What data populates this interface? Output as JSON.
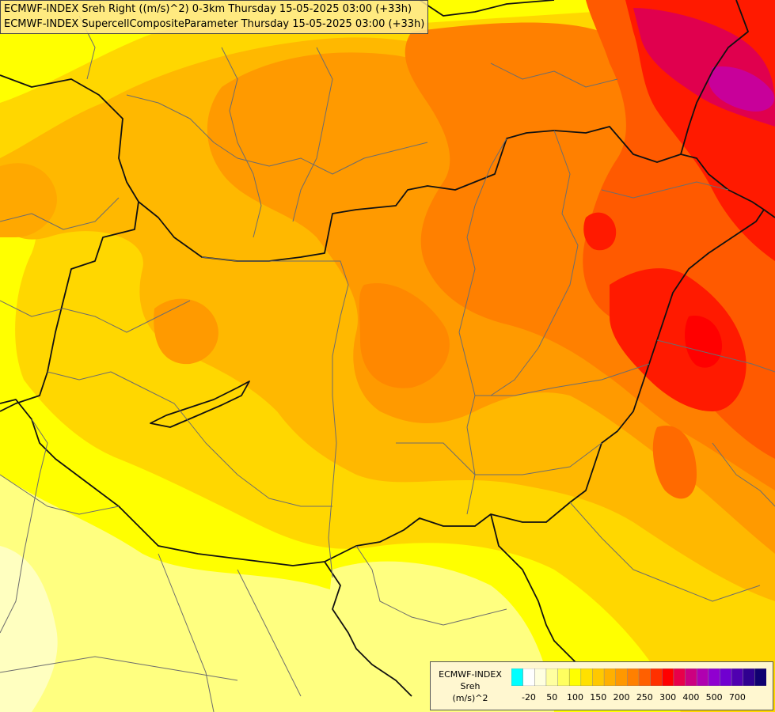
{
  "title": {
    "line1": "ECMWF-INDEX Sreh Right ((m/s)^2) 0-3km Thursday 15-05-2025 03:00 (+33h)",
    "line2": "ECMWF-INDEX SupercellCompositeParameter Thursday 15-05-2025 03:00 (+33h)"
  },
  "legend": {
    "line1": "ECMWF-INDEX",
    "line2": "Sreh",
    "line3": "(m/s)^2",
    "colors": [
      "#00ffff",
      "#ffffff",
      "#ffffe0",
      "#ffffa0",
      "#ffff60",
      "#ffff00",
      "#ffe000",
      "#ffc800",
      "#ffb000",
      "#ff9800",
      "#ff8000",
      "#ff6000",
      "#ff3000",
      "#ff0000",
      "#e8004a",
      "#cc0080",
      "#b000b0",
      "#9000d0",
      "#7000d0",
      "#5000b0",
      "#300090",
      "#100070"
    ],
    "ticks": [
      {
        "label": "-20",
        "slot": 1
      },
      {
        "label": "50",
        "slot": 3
      },
      {
        "label": "100",
        "slot": 5
      },
      {
        "label": "150",
        "slot": 7
      },
      {
        "label": "200",
        "slot": 9
      },
      {
        "label": "250",
        "slot": 11
      },
      {
        "label": "300",
        "slot": 13
      },
      {
        "label": "400",
        "slot": 15
      },
      {
        "label": "500",
        "slot": 17
      },
      {
        "label": "700",
        "slot": 19
      }
    ]
  }
}
